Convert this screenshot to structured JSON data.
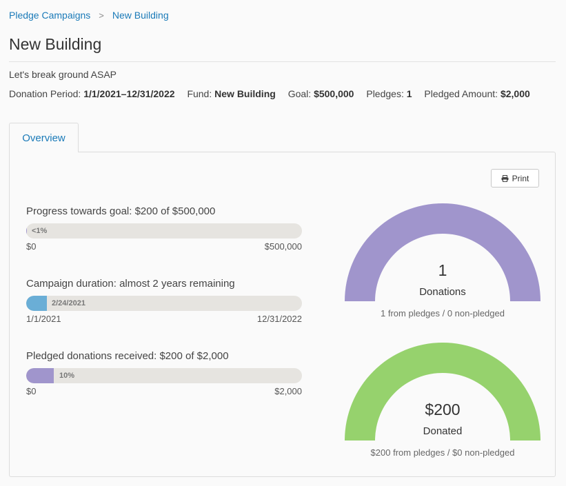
{
  "breadcrumb": {
    "parent": "Pledge Campaigns",
    "separator": ">",
    "current": "New Building"
  },
  "page": {
    "title": "New Building",
    "description": "Let's break ground ASAP"
  },
  "meta": {
    "period_label": "Donation Period:",
    "period_value": "1/1/2021–12/31/2022",
    "fund_label": "Fund:",
    "fund_value": "New Building",
    "goal_label": "Goal:",
    "goal_value": "$500,000",
    "pledges_label": "Pledges:",
    "pledges_value": "1",
    "pledged_label": "Pledged Amount:",
    "pledged_value": "$2,000"
  },
  "tabs": [
    {
      "label": "Overview",
      "active": true
    }
  ],
  "print": {
    "label": "Print",
    "icon": "printer-icon"
  },
  "stats": {
    "goal": {
      "label": "Progress towards goal: $200 of $500,000",
      "bar_text": "<1%",
      "fraction": 0.0004,
      "start": "$0",
      "end": "$500,000"
    },
    "duration": {
      "label": "Campaign duration: almost 2 years remaining",
      "bar_text": "2/24/2021",
      "fraction": 0.075,
      "start": "1/1/2021",
      "end": "12/31/2022"
    },
    "pledged": {
      "label": "Pledged donations received: $200 of $2,000",
      "bar_text": "10%",
      "fraction": 0.1,
      "start": "$0",
      "end": "$2,000"
    }
  },
  "gauges": {
    "donations": {
      "value": "1",
      "label": "Donations",
      "sub": "1 from pledges / 0 non-pledged"
    },
    "donated": {
      "value": "$200",
      "label": "Donated",
      "sub": "$200 from pledges / $0 non-pledged"
    }
  },
  "colors": {
    "link": "#1a7ab8",
    "duration_fill": "#6aaed6",
    "pledged_fill": "#a095cc",
    "gauge_donations": "#a095cc",
    "gauge_donated": "#96d26d",
    "bar_track": "#e6e4e0"
  }
}
